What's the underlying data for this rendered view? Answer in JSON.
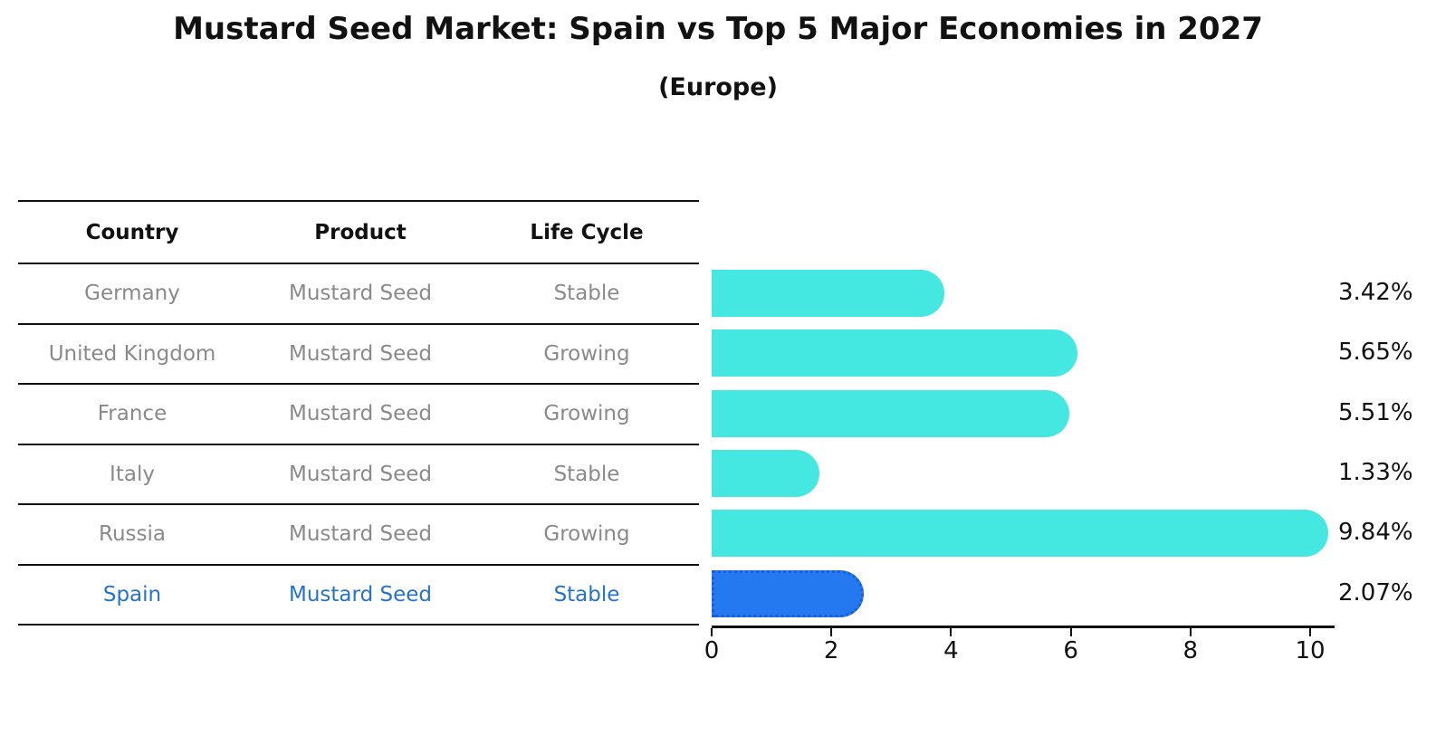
{
  "title": "Mustard Seed Market: Spain vs Top 5 Major Economies in 2027",
  "subtitle": "(Europe)",
  "table": {
    "headers": [
      "Country",
      "Product",
      "Life Cycle"
    ]
  },
  "chart_data": {
    "type": "bar",
    "orientation": "horizontal",
    "title": "Mustard Seed Market: Spain vs Top 5 Major Economies in 2027",
    "subtitle": "(Europe)",
    "categories": [
      "Germany",
      "United Kingdom",
      "France",
      "Italy",
      "Russia",
      "Spain"
    ],
    "values": [
      3.42,
      5.65,
      5.51,
      1.33,
      9.84,
      2.07
    ],
    "value_labels": [
      "3.42%",
      "5.65%",
      "5.51%",
      "1.33%",
      "9.84%",
      "2.07%"
    ],
    "rows": [
      {
        "country": "Germany",
        "product": "Mustard Seed",
        "life_cycle": "Stable",
        "value": 3.42,
        "label": "3.42%",
        "highlight": false
      },
      {
        "country": "United Kingdom",
        "product": "Mustard Seed",
        "life_cycle": "Growing",
        "value": 5.65,
        "label": "5.65%",
        "highlight": false
      },
      {
        "country": "France",
        "product": "Mustard Seed",
        "life_cycle": "Growing",
        "value": 5.51,
        "label": "5.51%",
        "highlight": false
      },
      {
        "country": "Italy",
        "product": "Mustard Seed",
        "life_cycle": "Stable",
        "value": 1.33,
        "label": "1.33%",
        "highlight": false
      },
      {
        "country": "Russia",
        "product": "Mustard Seed",
        "life_cycle": "Growing",
        "value": 9.84,
        "label": "9.84%",
        "highlight": false
      },
      {
        "country": "Spain",
        "product": "Mustard Seed",
        "life_cycle": "Stable",
        "value": 2.07,
        "label": "2.07%",
        "highlight": true
      }
    ],
    "xlim": [
      0,
      10
    ],
    "x_ticks": [
      0,
      2,
      4,
      6,
      8,
      10
    ],
    "grid": false,
    "legend": null,
    "bar_color": "#45e7e1",
    "highlight_color": "#2478f0",
    "highlight_index": 5,
    "muted_text_color": "#8a8a8a",
    "highlight_text_color": "#2673cd"
  }
}
